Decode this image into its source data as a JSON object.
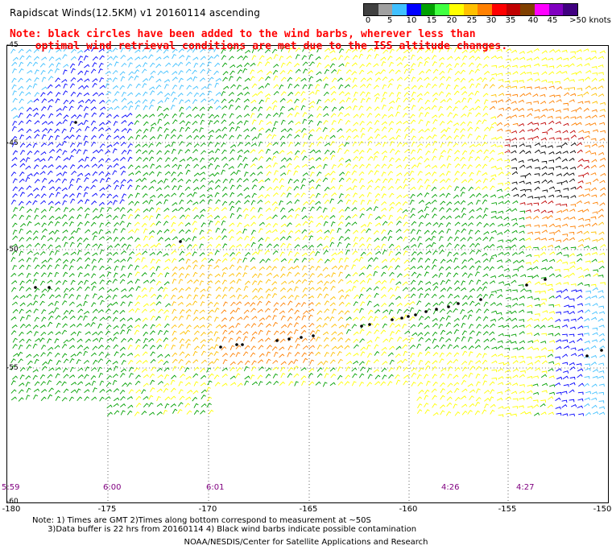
{
  "title": "Rapidscat Winds(12.5KM) v1 20160114 ascending",
  "note_red": [
    "Note: black circles have been added to the wind barbs, wherever less than",
    "    optimal wind retrieval conditions are met due to the ISS altitude changes."
  ],
  "colorbar": {
    "colors": [
      "#404040",
      "#a0a0a0",
      "#40c0ff",
      "#0000ff",
      "#00a000",
      "#40ff40",
      "#ffff00",
      "#ffc000",
      "#ff8000",
      "#ff0000",
      "#c00000",
      "#804000",
      "#ff00ff",
      "#8000c0",
      "#400080"
    ],
    "labels": [
      "0",
      "5",
      "10",
      "15",
      "20",
      "25",
      "30",
      "35",
      "40",
      "45",
      ">50 knots"
    ]
  },
  "lat_labels": [
    "-45",
    "-45",
    "-50",
    "-55",
    "-60"
  ],
  "lon_labels": [
    "-180",
    "-175",
    "-170",
    "-165",
    "-160",
    "-155",
    "-150"
  ],
  "time_labels": [
    "5:59",
    "6:00",
    "6:01",
    "4:26",
    "4:27"
  ],
  "footnote": [
    "Note: 1) Times are GMT 2)Times along bottom correspond to measurement at ~50S",
    "      3)Data buffer is 22 hrs from 20160114 4) Black wind barbs indicate possible contamination"
  ],
  "credit": "NOAA/NESDIS/Center for Satellite Applications and Research"
}
